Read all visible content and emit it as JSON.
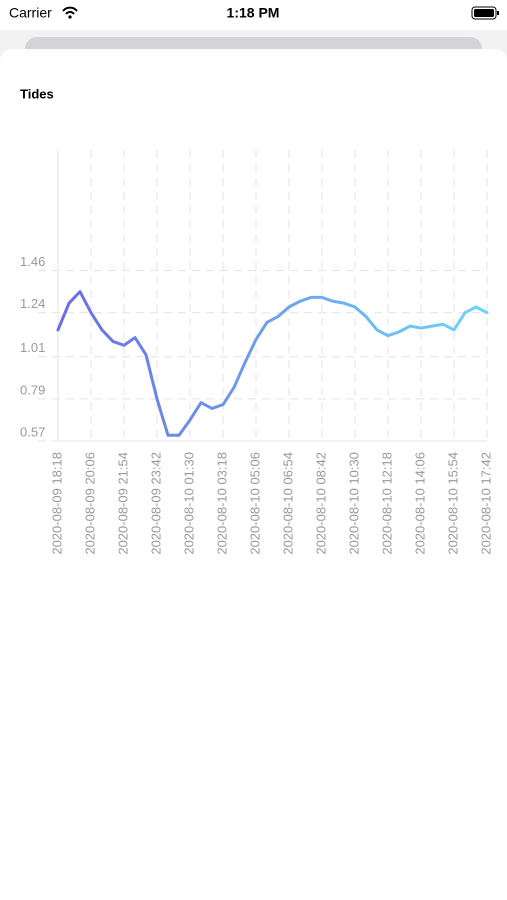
{
  "status_bar": {
    "carrier": "Carrier",
    "time": "1:18 PM"
  },
  "chart_data": {
    "type": "line",
    "title": "Tides",
    "x": [
      "2020-08-09 18:18",
      "2020-08-09 18:54",
      "2020-08-09 19:30",
      "2020-08-09 20:06",
      "2020-08-09 20:42",
      "2020-08-09 21:18",
      "2020-08-09 21:54",
      "2020-08-09 22:30",
      "2020-08-09 23:06",
      "2020-08-09 23:42",
      "2020-08-10 00:18",
      "2020-08-10 00:54",
      "2020-08-10 01:30",
      "2020-08-10 02:06",
      "2020-08-10 02:42",
      "2020-08-10 03:18",
      "2020-08-10 03:54",
      "2020-08-10 04:30",
      "2020-08-10 05:06",
      "2020-08-10 05:42",
      "2020-08-10 06:18",
      "2020-08-10 06:54",
      "2020-08-10 07:30",
      "2020-08-10 08:06",
      "2020-08-10 08:42",
      "2020-08-10 09:18",
      "2020-08-10 09:54",
      "2020-08-10 10:30",
      "2020-08-10 11:06",
      "2020-08-10 11:42",
      "2020-08-10 12:18",
      "2020-08-10 12:54",
      "2020-08-10 13:30",
      "2020-08-10 14:06",
      "2020-08-10 14:42",
      "2020-08-10 15:18",
      "2020-08-10 15:54",
      "2020-08-10 16:30",
      "2020-08-10 17:06",
      "2020-08-10 17:42"
    ],
    "series": [
      {
        "values": [
          1.15,
          1.29,
          1.35,
          1.24,
          1.15,
          1.09,
          1.07,
          1.11,
          1.02,
          0.79,
          0.6,
          0.6,
          0.68,
          0.77,
          0.74,
          0.76,
          0.85,
          0.98,
          1.1,
          1.19,
          1.22,
          1.27,
          1.3,
          1.32,
          1.32,
          1.3,
          1.29,
          1.27,
          1.22,
          1.15,
          1.12,
          1.14,
          1.17,
          1.16,
          1.17,
          1.18,
          1.15,
          1.24,
          1.27,
          1.24
        ],
        "gradient": [
          "#6b6ce6",
          "#6dd6f8"
        ]
      }
    ],
    "xticks": [
      "2020-08-09 18:18",
      "2020-08-09 20:06",
      "2020-08-09 21:54",
      "2020-08-09 23:42",
      "2020-08-10 01:30",
      "2020-08-10 03:18",
      "2020-08-10 05:06",
      "2020-08-10 06:54",
      "2020-08-10 08:42",
      "2020-08-10 10:30",
      "2020-08-10 12:18",
      "2020-08-10 14:06",
      "2020-08-10 15:54",
      "2020-08-10 17:42"
    ],
    "ylim": [
      0.57,
      2.09
    ],
    "yticks": [
      0.57,
      0.79,
      1.01,
      1.24,
      1.46
    ],
    "grid": true
  }
}
